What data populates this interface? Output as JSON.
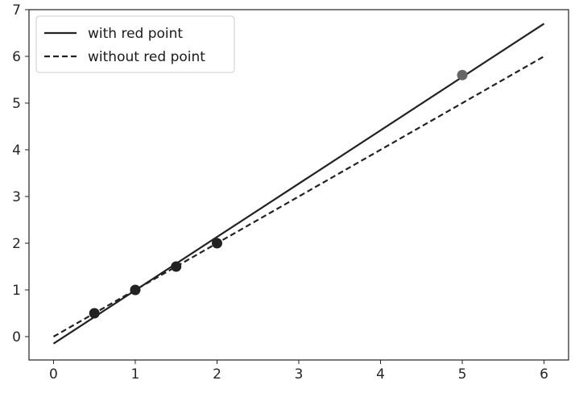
{
  "chart_data": {
    "type": "scatter",
    "title": "",
    "xlabel": "",
    "ylabel": "",
    "xlim": [
      -0.3,
      6.3
    ],
    "ylim": [
      -0.5,
      7.0
    ],
    "x_ticks": [
      0,
      1,
      2,
      3,
      4,
      5,
      6
    ],
    "y_ticks": [
      0,
      1,
      2,
      3,
      4,
      5,
      6,
      7
    ],
    "grid": false,
    "legend_position": "top-left",
    "lines": [
      {
        "name": "with red point",
        "style": "solid",
        "color": "#222222",
        "x": [
          0,
          6
        ],
        "y": [
          -0.15,
          6.7
        ]
      },
      {
        "name": "without red point",
        "style": "dashed",
        "color": "#222222",
        "x": [
          0,
          6
        ],
        "y": [
          0.0,
          6.0
        ]
      }
    ],
    "points": [
      {
        "x": 0.5,
        "y": 0.5,
        "color": "#222222"
      },
      {
        "x": 1.0,
        "y": 1.0,
        "color": "#222222"
      },
      {
        "x": 1.5,
        "y": 1.5,
        "color": "#222222"
      },
      {
        "x": 2.0,
        "y": 2.0,
        "color": "#222222"
      },
      {
        "x": 5.0,
        "y": 5.6,
        "color": "#666666"
      }
    ]
  }
}
